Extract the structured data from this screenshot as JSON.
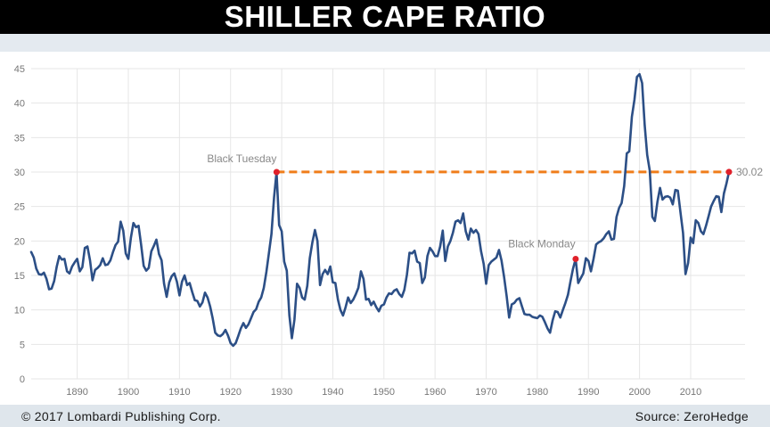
{
  "header": {
    "title": "SHILLER CAPE RATIO"
  },
  "footer": {
    "copyright": "© 2017 Lombardi Publishing Corp.",
    "source": "Source: ZeroHedge"
  },
  "colors": {
    "line": "#2c4f86",
    "reference_line": "#f07d1a",
    "marker": "#e0202a",
    "grid": "#e6e6e6",
    "axis_text": "#777777"
  },
  "chart_data": {
    "type": "line",
    "title": "SHILLER CAPE RATIO",
    "xlabel": "",
    "ylabel": "",
    "xlim": [
      1881,
      2017.5
    ],
    "ylim": [
      0,
      45
    ],
    "grid": true,
    "x_ticks": [
      1890,
      1900,
      1910,
      1920,
      1930,
      1940,
      1950,
      1960,
      1970,
      1980,
      1990,
      2000,
      2010
    ],
    "y_ticks": [
      0,
      5,
      10,
      15,
      20,
      25,
      30,
      35,
      40,
      45
    ],
    "series": [
      {
        "points": [
          [
            1881,
            18.4
          ],
          [
            1881.5,
            17.6
          ],
          [
            1882,
            16
          ],
          [
            1882.5,
            15.2
          ],
          [
            1883,
            15.1
          ],
          [
            1883.5,
            15.4
          ],
          [
            1884,
            14.5
          ],
          [
            1884.5,
            13
          ],
          [
            1885,
            13.1
          ],
          [
            1885.5,
            14.2
          ],
          [
            1886,
            16.3
          ],
          [
            1886.5,
            17.8
          ],
          [
            1887,
            17.3
          ],
          [
            1887.5,
            17.4
          ],
          [
            1888,
            15.6
          ],
          [
            1888.5,
            15.3
          ],
          [
            1889,
            16.3
          ],
          [
            1889.5,
            16.9
          ],
          [
            1890,
            17.4
          ],
          [
            1890.5,
            15.6
          ],
          [
            1891,
            16.2
          ],
          [
            1891.5,
            19
          ],
          [
            1892,
            19.2
          ],
          [
            1892.5,
            17.2
          ],
          [
            1893,
            14.3
          ],
          [
            1893.5,
            15.8
          ],
          [
            1894,
            16.1
          ],
          [
            1894.5,
            16.5
          ],
          [
            1895,
            17.5
          ],
          [
            1895.5,
            16.5
          ],
          [
            1896,
            16.6
          ],
          [
            1896.5,
            17.2
          ],
          [
            1897,
            18.4
          ],
          [
            1897.5,
            19.4
          ],
          [
            1898,
            19.9
          ],
          [
            1898.5,
            22.8
          ],
          [
            1899,
            21.5
          ],
          [
            1899.5,
            18.2
          ],
          [
            1900,
            17.4
          ],
          [
            1900.5,
            20.5
          ],
          [
            1901,
            22.6
          ],
          [
            1901.5,
            22
          ],
          [
            1902,
            22.2
          ],
          [
            1902.5,
            19.5
          ],
          [
            1903,
            16.4
          ],
          [
            1903.5,
            15.7
          ],
          [
            1904,
            16.1
          ],
          [
            1904.5,
            18.5
          ],
          [
            1905,
            19.3
          ],
          [
            1905.5,
            20.2
          ],
          [
            1906,
            18.1
          ],
          [
            1906.5,
            17.2
          ],
          [
            1907,
            13.8
          ],
          [
            1907.5,
            11.9
          ],
          [
            1908,
            14
          ],
          [
            1908.5,
            14.9
          ],
          [
            1909,
            15.3
          ],
          [
            1909.5,
            14.1
          ],
          [
            1910,
            12.1
          ],
          [
            1910.5,
            14.1
          ],
          [
            1911,
            15
          ],
          [
            1911.5,
            13.6
          ],
          [
            1912,
            13.9
          ],
          [
            1912.5,
            12.6
          ],
          [
            1913,
            11.4
          ],
          [
            1913.5,
            11.3
          ],
          [
            1914,
            10.5
          ],
          [
            1914.5,
            11.1
          ],
          [
            1915,
            12.5
          ],
          [
            1915.5,
            11.8
          ],
          [
            1916,
            10.5
          ],
          [
            1916.5,
            8.8
          ],
          [
            1917,
            6.7
          ],
          [
            1917.5,
            6.3
          ],
          [
            1918,
            6.2
          ],
          [
            1918.5,
            6.5
          ],
          [
            1919,
            7.1
          ],
          [
            1919.5,
            6.3
          ],
          [
            1920,
            5.2
          ],
          [
            1920.5,
            4.8
          ],
          [
            1921,
            5.2
          ],
          [
            1921.5,
            6.2
          ],
          [
            1922,
            7.3
          ],
          [
            1922.5,
            8.1
          ],
          [
            1923,
            7.4
          ],
          [
            1923.5,
            7.9
          ],
          [
            1924,
            8.8
          ],
          [
            1924.5,
            9.7
          ],
          [
            1925,
            10.1
          ],
          [
            1925.5,
            11.2
          ],
          [
            1926,
            11.8
          ],
          [
            1926.5,
            13.2
          ],
          [
            1927,
            15.5
          ],
          [
            1927.5,
            18.2
          ],
          [
            1928,
            21
          ],
          [
            1928.5,
            26.3
          ],
          [
            1929,
            30
          ],
          [
            1929.5,
            22.3
          ],
          [
            1930,
            21.4
          ],
          [
            1930.5,
            17
          ],
          [
            1931,
            15.7
          ],
          [
            1931.5,
            9.2
          ],
          [
            1932,
            5.9
          ],
          [
            1932.5,
            8.6
          ],
          [
            1933,
            13.8
          ],
          [
            1933.5,
            13.2
          ],
          [
            1934,
            11.8
          ],
          [
            1934.5,
            11.5
          ],
          [
            1935,
            13.5
          ],
          [
            1935.5,
            17.5
          ],
          [
            1936,
            19.8
          ],
          [
            1936.5,
            21.6
          ],
          [
            1937,
            20
          ],
          [
            1937.5,
            13.6
          ],
          [
            1938,
            15.2
          ],
          [
            1938.5,
            15.8
          ],
          [
            1939,
            15.2
          ],
          [
            1939.5,
            16.3
          ],
          [
            1940,
            14
          ],
          [
            1940.5,
            13.9
          ],
          [
            1941,
            11.5
          ],
          [
            1941.5,
            10
          ],
          [
            1942,
            9.2
          ],
          [
            1942.5,
            10.4
          ],
          [
            1943,
            11.8
          ],
          [
            1943.5,
            11
          ],
          [
            1944,
            11.5
          ],
          [
            1944.5,
            12.3
          ],
          [
            1945,
            13.2
          ],
          [
            1945.5,
            15.6
          ],
          [
            1946,
            14.5
          ],
          [
            1946.5,
            11.5
          ],
          [
            1947,
            11.6
          ],
          [
            1947.5,
            10.7
          ],
          [
            1948,
            11.2
          ],
          [
            1948.5,
            10.4
          ],
          [
            1949,
            9.8
          ],
          [
            1949.5,
            10.6
          ],
          [
            1950,
            10.8
          ],
          [
            1950.5,
            11.8
          ],
          [
            1951,
            12.4
          ],
          [
            1951.5,
            12.3
          ],
          [
            1952,
            12.8
          ],
          [
            1952.5,
            13
          ],
          [
            1953,
            12.3
          ],
          [
            1953.5,
            11.9
          ],
          [
            1954,
            12.9
          ],
          [
            1954.5,
            15.1
          ],
          [
            1955,
            18.3
          ],
          [
            1955.5,
            18.2
          ],
          [
            1956,
            18.6
          ],
          [
            1956.5,
            17
          ],
          [
            1957,
            16.8
          ],
          [
            1957.5,
            13.9
          ],
          [
            1958,
            14.7
          ],
          [
            1958.5,
            17.8
          ],
          [
            1959,
            19
          ],
          [
            1959.5,
            18.5
          ],
          [
            1960,
            17.8
          ],
          [
            1960.5,
            17.8
          ],
          [
            1961,
            19.2
          ],
          [
            1961.5,
            21.5
          ],
          [
            1962,
            17.1
          ],
          [
            1962.5,
            19.2
          ],
          [
            1963,
            20
          ],
          [
            1963.5,
            21.2
          ],
          [
            1964,
            22.8
          ],
          [
            1964.5,
            23
          ],
          [
            1965,
            22.6
          ],
          [
            1965.5,
            24
          ],
          [
            1966,
            21.4
          ],
          [
            1966.5,
            20.2
          ],
          [
            1967,
            21.8
          ],
          [
            1967.5,
            21.2
          ],
          [
            1968,
            21.6
          ],
          [
            1968.5,
            21
          ],
          [
            1969,
            18.5
          ],
          [
            1969.5,
            16.7
          ],
          [
            1970,
            13.8
          ],
          [
            1970.5,
            16.5
          ],
          [
            1971,
            17
          ],
          [
            1971.5,
            17.3
          ],
          [
            1972,
            17.6
          ],
          [
            1972.5,
            18.7
          ],
          [
            1973,
            17.2
          ],
          [
            1973.5,
            14.8
          ],
          [
            1974,
            12
          ],
          [
            1974.5,
            8.9
          ],
          [
            1975,
            10.8
          ],
          [
            1975.5,
            11
          ],
          [
            1976,
            11.5
          ],
          [
            1976.5,
            11.7
          ],
          [
            1977,
            10.5
          ],
          [
            1977.5,
            9.4
          ],
          [
            1978,
            9.3
          ],
          [
            1978.5,
            9.3
          ],
          [
            1979,
            9
          ],
          [
            1979.5,
            8.9
          ],
          [
            1980,
            8.8
          ],
          [
            1980.5,
            9.2
          ],
          [
            1981,
            9
          ],
          [
            1981.5,
            8.2
          ],
          [
            1982,
            7.3
          ],
          [
            1982.5,
            6.7
          ],
          [
            1983,
            8.5
          ],
          [
            1983.5,
            9.8
          ],
          [
            1984,
            9.7
          ],
          [
            1984.5,
            8.9
          ],
          [
            1985,
            10
          ],
          [
            1985.5,
            11
          ],
          [
            1986,
            12.2
          ],
          [
            1986.5,
            14.2
          ],
          [
            1987,
            16
          ],
          [
            1987.5,
            17.4
          ],
          [
            1988,
            13.9
          ],
          [
            1988.5,
            14.6
          ],
          [
            1989,
            15.3
          ],
          [
            1989.5,
            17.5
          ],
          [
            1990,
            17.1
          ],
          [
            1990.5,
            15.6
          ],
          [
            1991,
            17.4
          ],
          [
            1991.5,
            19.5
          ],
          [
            1992,
            19.8
          ],
          [
            1992.5,
            20
          ],
          [
            1993,
            20.4
          ],
          [
            1993.5,
            21
          ],
          [
            1994,
            21.4
          ],
          [
            1994.5,
            20.2
          ],
          [
            1995,
            20.3
          ],
          [
            1995.5,
            23.5
          ],
          [
            1996,
            24.8
          ],
          [
            1996.5,
            25.5
          ],
          [
            1997,
            28
          ],
          [
            1997.5,
            32.7
          ],
          [
            1998,
            33
          ],
          [
            1998.5,
            38
          ],
          [
            1999,
            40.5
          ],
          [
            1999.5,
            43.8
          ],
          [
            2000,
            44.2
          ],
          [
            2000.5,
            42.9
          ],
          [
            2001,
            36.8
          ],
          [
            2001.5,
            32.5
          ],
          [
            2002,
            30.2
          ],
          [
            2002.5,
            23.5
          ],
          [
            2003,
            22.9
          ],
          [
            2003.5,
            25.7
          ],
          [
            2004,
            27.7
          ],
          [
            2004.5,
            26
          ],
          [
            2005,
            26.4
          ],
          [
            2005.5,
            26.5
          ],
          [
            2006,
            26.3
          ],
          [
            2006.5,
            25.3
          ],
          [
            2007,
            27.4
          ],
          [
            2007.5,
            27.3
          ],
          [
            2008,
            24.2
          ],
          [
            2008.5,
            21.2
          ],
          [
            2009,
            15.2
          ],
          [
            2009.5,
            16.8
          ],
          [
            2010,
            20.5
          ],
          [
            2010.5,
            19.7
          ],
          [
            2011,
            23
          ],
          [
            2011.5,
            22.6
          ],
          [
            2012,
            21.4
          ],
          [
            2012.5,
            21
          ],
          [
            2013,
            22.2
          ],
          [
            2013.5,
            23.6
          ],
          [
            2014,
            25
          ],
          [
            2014.5,
            25.8
          ],
          [
            2015,
            26.5
          ],
          [
            2015.5,
            26.4
          ],
          [
            2016,
            24.2
          ],
          [
            2016.5,
            26.9
          ],
          [
            2017,
            28.3
          ],
          [
            2017.5,
            30.02
          ]
        ]
      }
    ],
    "reference_line": {
      "y": 30.02,
      "x_start": 1929,
      "x_end": 2017.5
    },
    "annotations": [
      {
        "label": "Black Tuesday",
        "x": 1929,
        "y": 30
      },
      {
        "label": "Black Monday",
        "x": 1987.5,
        "y": 17.4
      },
      {
        "label": "30.02",
        "x": 2017.5,
        "y": 30.02
      }
    ]
  }
}
